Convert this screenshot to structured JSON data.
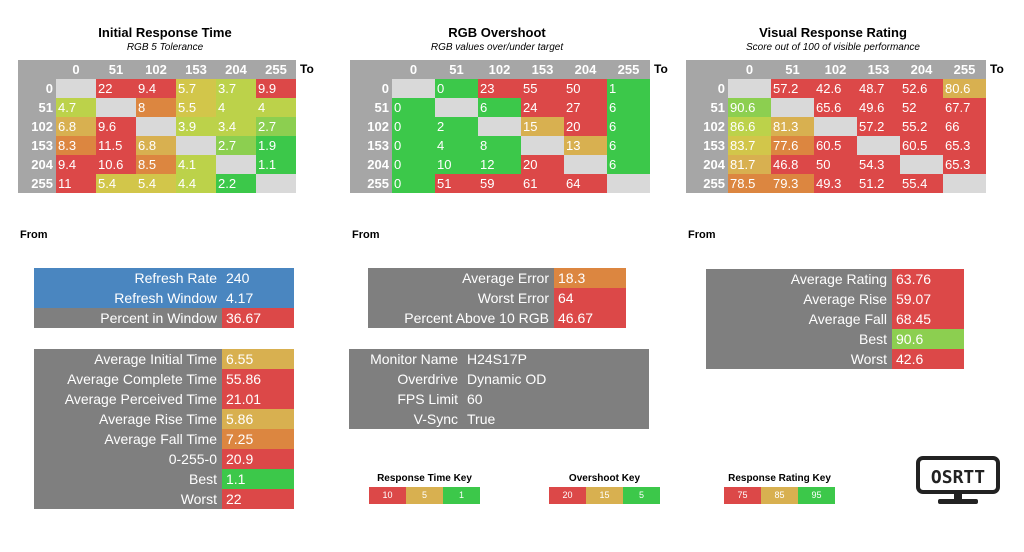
{
  "axis": {
    "to": "To",
    "from": "From"
  },
  "levels": [
    "0",
    "51",
    "102",
    "153",
    "204",
    "255"
  ],
  "colors": {
    "header_grey": "#a6a6a6",
    "empty": "#d9d9d9",
    "panel_grey": "#7f7f7f",
    "blue": "#4a86c0",
    "green": "#3cc84a",
    "lightgreen": "#8ccf50",
    "yellowgreen": "#bcd24a",
    "yellow": "#d2c64a",
    "tan": "#d8b050",
    "orange": "#dc8640",
    "red": "#dc4848"
  },
  "panels": [
    {
      "title": "Initial Response Time",
      "subtitle": "RGB 5 Tolerance",
      "rows": [
        [
          {
            "v": ""
          },
          {
            "v": "22",
            "c": "red"
          },
          {
            "v": "9.4",
            "c": "red"
          },
          {
            "v": "5.7",
            "c": "yellow"
          },
          {
            "v": "3.7",
            "c": "yellowgreen"
          },
          {
            "v": "9.9",
            "c": "red"
          }
        ],
        [
          {
            "v": "4.7",
            "c": "yellowgreen"
          },
          {
            "v": ""
          },
          {
            "v": "8",
            "c": "orange"
          },
          {
            "v": "5.5",
            "c": "yellow"
          },
          {
            "v": "4",
            "c": "yellowgreen"
          },
          {
            "v": "4",
            "c": "yellowgreen"
          }
        ],
        [
          {
            "v": "6.8",
            "c": "tan"
          },
          {
            "v": "9.6",
            "c": "red"
          },
          {
            "v": ""
          },
          {
            "v": "3.9",
            "c": "yellowgreen"
          },
          {
            "v": "3.4",
            "c": "yellowgreen"
          },
          {
            "v": "2.7",
            "c": "lightgreen"
          }
        ],
        [
          {
            "v": "8.3",
            "c": "orange"
          },
          {
            "v": "11.5",
            "c": "red"
          },
          {
            "v": "6.8",
            "c": "tan"
          },
          {
            "v": ""
          },
          {
            "v": "2.7",
            "c": "lightgreen"
          },
          {
            "v": "1.9",
            "c": "green"
          }
        ],
        [
          {
            "v": "9.4",
            "c": "red"
          },
          {
            "v": "10.6",
            "c": "red"
          },
          {
            "v": "8.5",
            "c": "orange"
          },
          {
            "v": "4.1",
            "c": "yellowgreen"
          },
          {
            "v": ""
          },
          {
            "v": "1.1",
            "c": "green"
          }
        ],
        [
          {
            "v": "11",
            "c": "red"
          },
          {
            "v": "5.4",
            "c": "yellow"
          },
          {
            "v": "5.4",
            "c": "yellow"
          },
          {
            "v": "4.4",
            "c": "yellowgreen"
          },
          {
            "v": "2.2",
            "c": "green"
          },
          {
            "v": ""
          }
        ]
      ]
    },
    {
      "title": "RGB Overshoot",
      "subtitle": "RGB values over/under target",
      "rows": [
        [
          {
            "v": ""
          },
          {
            "v": "0",
            "c": "green"
          },
          {
            "v": "23",
            "c": "red"
          },
          {
            "v": "55",
            "c": "red"
          },
          {
            "v": "50",
            "c": "red"
          },
          {
            "v": "1",
            "c": "green"
          }
        ],
        [
          {
            "v": "0",
            "c": "green"
          },
          {
            "v": ""
          },
          {
            "v": "6",
            "c": "green"
          },
          {
            "v": "24",
            "c": "red"
          },
          {
            "v": "27",
            "c": "red"
          },
          {
            "v": "6",
            "c": "green"
          }
        ],
        [
          {
            "v": "0",
            "c": "green"
          },
          {
            "v": "2",
            "c": "green"
          },
          {
            "v": ""
          },
          {
            "v": "15",
            "c": "tan"
          },
          {
            "v": "20",
            "c": "red"
          },
          {
            "v": "6",
            "c": "green"
          }
        ],
        [
          {
            "v": "0",
            "c": "green"
          },
          {
            "v": "4",
            "c": "green"
          },
          {
            "v": "8",
            "c": "green"
          },
          {
            "v": ""
          },
          {
            "v": "13",
            "c": "tan"
          },
          {
            "v": "6",
            "c": "green"
          }
        ],
        [
          {
            "v": "0",
            "c": "green"
          },
          {
            "v": "10",
            "c": "green"
          },
          {
            "v": "12",
            "c": "green"
          },
          {
            "v": "20",
            "c": "red"
          },
          {
            "v": ""
          },
          {
            "v": "6",
            "c": "green"
          }
        ],
        [
          {
            "v": "0",
            "c": "green"
          },
          {
            "v": "51",
            "c": "red"
          },
          {
            "v": "59",
            "c": "red"
          },
          {
            "v": "61",
            "c": "red"
          },
          {
            "v": "64",
            "c": "red"
          },
          {
            "v": ""
          }
        ]
      ]
    },
    {
      "title": "Visual Response Rating",
      "subtitle": "Score out of 100 of visible performance",
      "rows": [
        [
          {
            "v": ""
          },
          {
            "v": "57.2",
            "c": "red"
          },
          {
            "v": "42.6",
            "c": "red"
          },
          {
            "v": "48.7",
            "c": "red"
          },
          {
            "v": "52.6",
            "c": "red"
          },
          {
            "v": "80.6",
            "c": "tan"
          }
        ],
        [
          {
            "v": "90.6",
            "c": "lightgreen"
          },
          {
            "v": ""
          },
          {
            "v": "65.6",
            "c": "red"
          },
          {
            "v": "49.6",
            "c": "red"
          },
          {
            "v": "52",
            "c": "red"
          },
          {
            "v": "67.7",
            "c": "red"
          }
        ],
        [
          {
            "v": "86.6",
            "c": "yellowgreen"
          },
          {
            "v": "81.3",
            "c": "tan"
          },
          {
            "v": ""
          },
          {
            "v": "57.2",
            "c": "red"
          },
          {
            "v": "55.2",
            "c": "red"
          },
          {
            "v": "66",
            "c": "red"
          }
        ],
        [
          {
            "v": "83.7",
            "c": "yellow"
          },
          {
            "v": "77.6",
            "c": "orange"
          },
          {
            "v": "60.5",
            "c": "red"
          },
          {
            "v": ""
          },
          {
            "v": "60.5",
            "c": "red"
          },
          {
            "v": "65.3",
            "c": "red"
          }
        ],
        [
          {
            "v": "81.7",
            "c": "tan"
          },
          {
            "v": "46.8",
            "c": "red"
          },
          {
            "v": "50",
            "c": "red"
          },
          {
            "v": "54.3",
            "c": "red"
          },
          {
            "v": ""
          },
          {
            "v": "65.3",
            "c": "red"
          }
        ],
        [
          {
            "v": "78.5",
            "c": "orange"
          },
          {
            "v": "79.3",
            "c": "orange"
          },
          {
            "v": "49.3",
            "c": "red"
          },
          {
            "v": "51.2",
            "c": "red"
          },
          {
            "v": "55.4",
            "c": "red"
          },
          {
            "v": ""
          }
        ]
      ]
    }
  ],
  "info_boxes": [
    {
      "id": "refresh",
      "rows": [
        {
          "label": "Refresh Rate",
          "value": "240",
          "lc": "blue",
          "vc": "blue"
        },
        {
          "label": "Refresh Window",
          "value": "4.17",
          "lc": "blue",
          "vc": "blue"
        },
        {
          "label": "Percent in Window",
          "value": "36.67",
          "lc": "panel_grey",
          "vc": "red"
        }
      ]
    },
    {
      "id": "averages",
      "rows": [
        {
          "label": "Average Initial Time",
          "value": "6.55",
          "lc": "panel_grey",
          "vc": "tan"
        },
        {
          "label": "Average Complete Time",
          "value": "55.86",
          "lc": "panel_grey",
          "vc": "red"
        },
        {
          "label": "Average Perceived Time",
          "value": "21.01",
          "lc": "panel_grey",
          "vc": "red"
        },
        {
          "label": "Average Rise Time",
          "value": "5.86",
          "lc": "panel_grey",
          "vc": "tan"
        },
        {
          "label": "Average Fall Time",
          "value": "7.25",
          "lc": "panel_grey",
          "vc": "orange"
        },
        {
          "label": "0-255-0",
          "value": "20.9",
          "lc": "panel_grey",
          "vc": "red"
        },
        {
          "label": "Best",
          "value": "1.1",
          "lc": "panel_grey",
          "vc": "green"
        },
        {
          "label": "Worst",
          "value": "22",
          "lc": "panel_grey",
          "vc": "red"
        }
      ]
    },
    {
      "id": "overshoot",
      "rows": [
        {
          "label": "Average Error",
          "value": "18.3",
          "lc": "panel_grey",
          "vc": "orange"
        },
        {
          "label": "Worst Error",
          "value": "64",
          "lc": "panel_grey",
          "vc": "red"
        },
        {
          "label": "Percent Above 10 RGB",
          "value": "46.67",
          "lc": "panel_grey",
          "vc": "red"
        }
      ]
    },
    {
      "id": "monitor",
      "rows": [
        {
          "label": "Monitor Name",
          "value": "H24S17P",
          "lc": "panel_grey",
          "vc": "panel_grey"
        },
        {
          "label": "Overdrive",
          "value": "Dynamic OD",
          "lc": "panel_grey",
          "vc": "panel_grey"
        },
        {
          "label": "FPS Limit",
          "value": "60",
          "lc": "panel_grey",
          "vc": "panel_grey"
        },
        {
          "label": "V-Sync",
          "value": "True",
          "lc": "panel_grey",
          "vc": "panel_grey"
        }
      ]
    },
    {
      "id": "rating",
      "rows": [
        {
          "label": "Average Rating",
          "value": "63.76",
          "lc": "panel_grey",
          "vc": "red"
        },
        {
          "label": "Average Rise",
          "value": "59.07",
          "lc": "panel_grey",
          "vc": "red"
        },
        {
          "label": "Average Fall",
          "value": "68.45",
          "lc": "panel_grey",
          "vc": "red"
        },
        {
          "label": "Best",
          "value": "90.6",
          "lc": "panel_grey",
          "vc": "lightgreen"
        },
        {
          "label": "Worst",
          "value": "42.6",
          "lc": "panel_grey",
          "vc": "red"
        }
      ]
    }
  ],
  "keys": [
    {
      "title": "Response Time Key",
      "cells": [
        {
          "v": "10",
          "c": "red"
        },
        {
          "v": "5",
          "c": "tan"
        },
        {
          "v": "1",
          "c": "green"
        }
      ]
    },
    {
      "title": "Overshoot Key",
      "cells": [
        {
          "v": "20",
          "c": "red"
        },
        {
          "v": "15",
          "c": "tan"
        },
        {
          "v": "5",
          "c": "green"
        }
      ]
    },
    {
      "title": "Response Rating Key",
      "cells": [
        {
          "v": "75",
          "c": "red"
        },
        {
          "v": "85",
          "c": "tan"
        },
        {
          "v": "95",
          "c": "green"
        }
      ]
    }
  ],
  "logo": {
    "text": "OSRTT",
    "icon": "monitor-icon"
  }
}
